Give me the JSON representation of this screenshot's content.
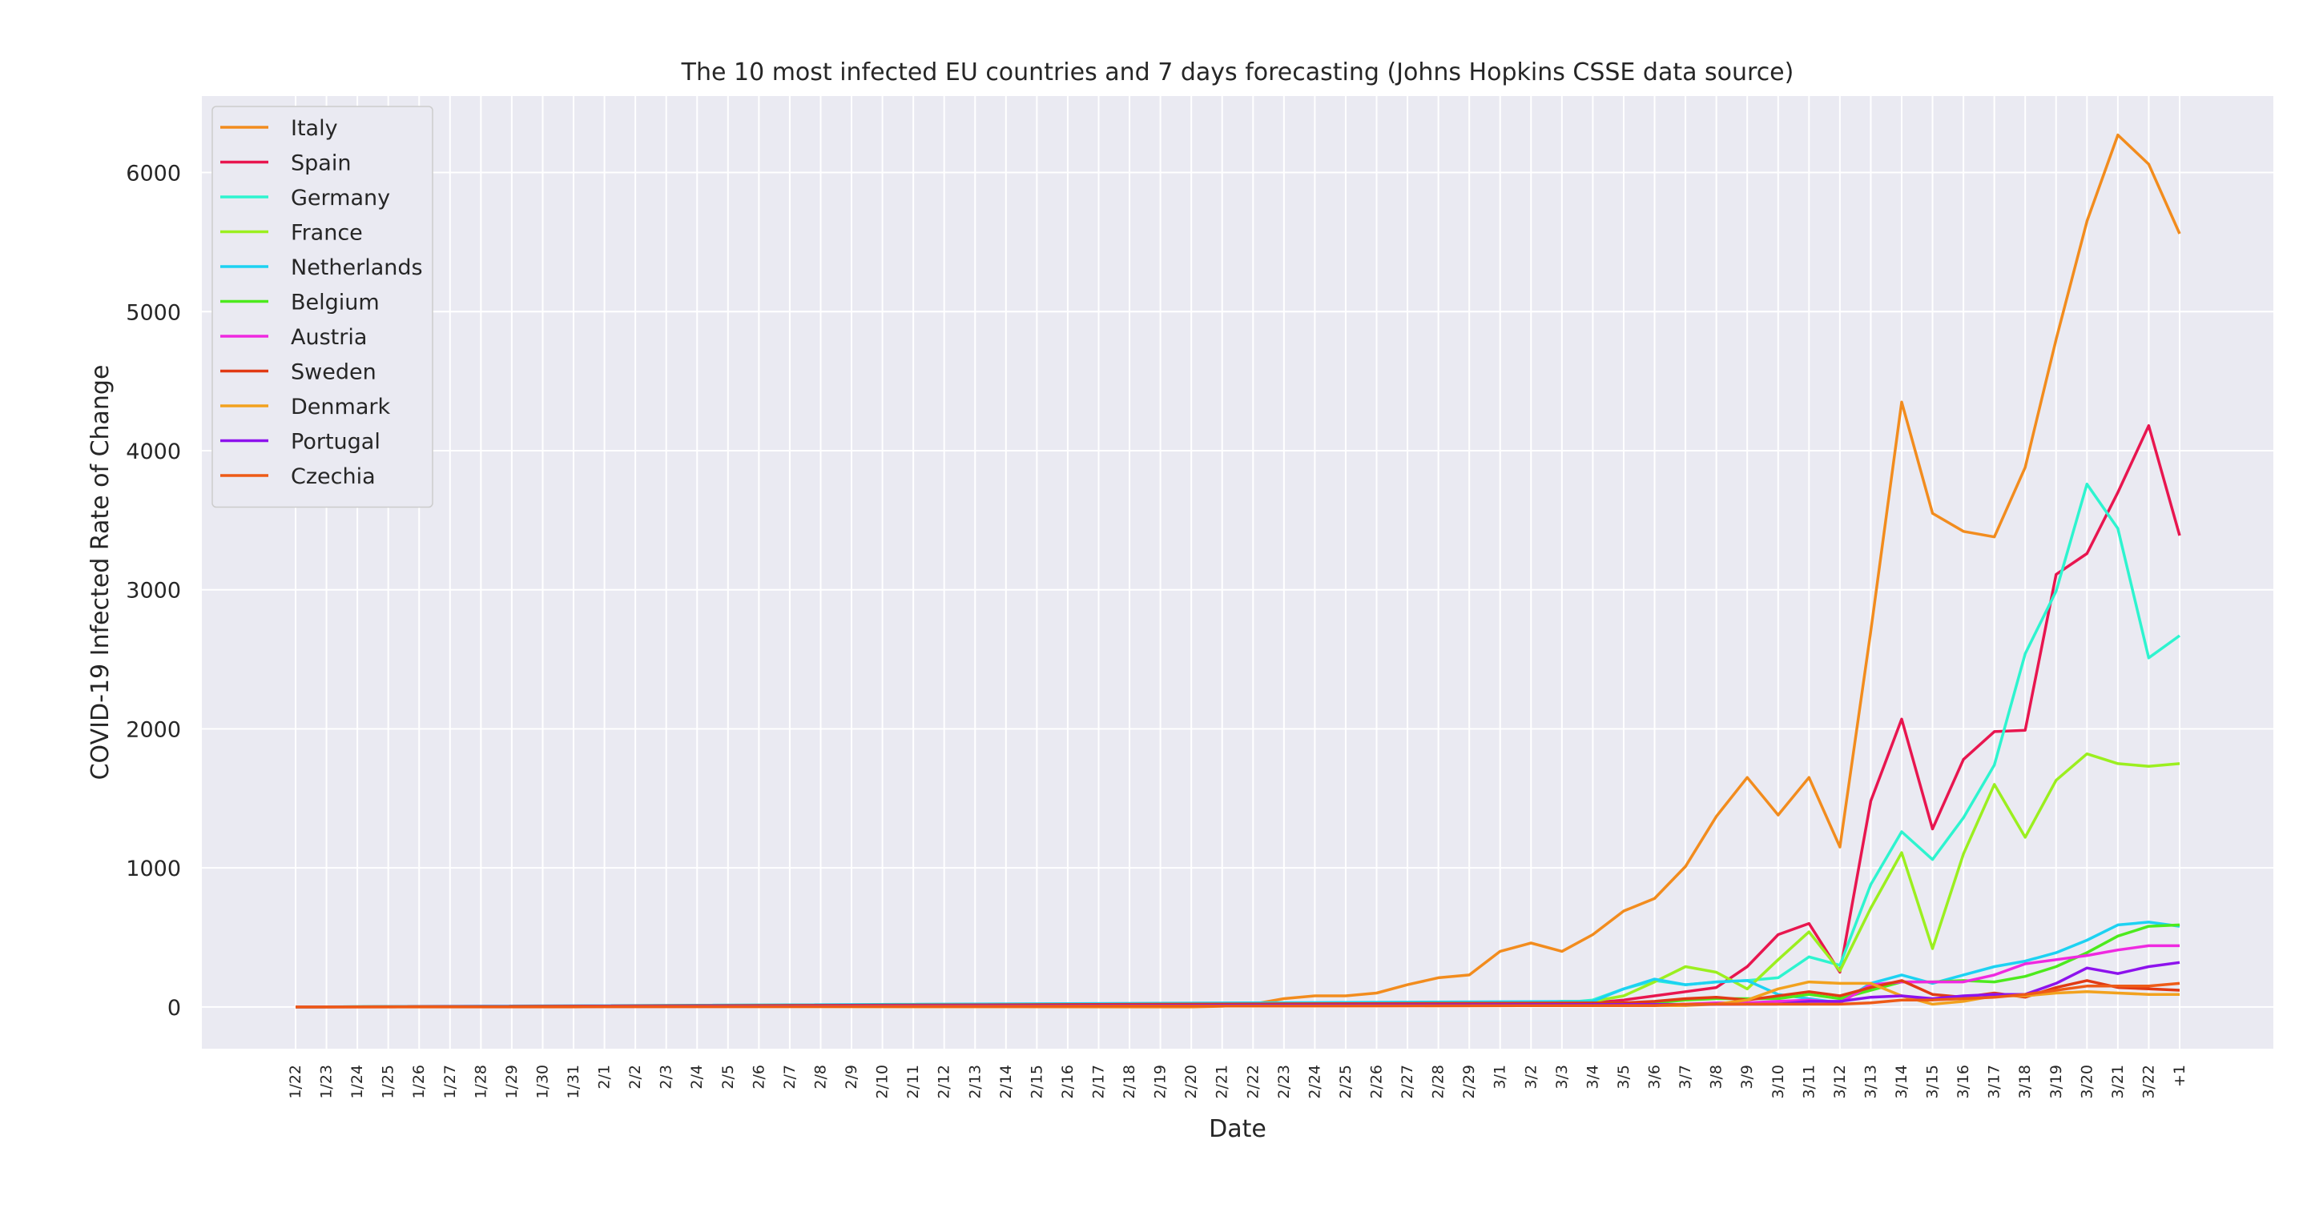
{
  "chart_data": {
    "type": "line",
    "title": "The 10 most infected EU countries and 7 days forecasting (Johns Hopkins CSSE data source)",
    "xlabel": "Date",
    "ylabel": "COVID-19 Infected Rate of Change",
    "ylim": [
      -300,
      6550
    ],
    "yticks": [
      0,
      1000,
      2000,
      3000,
      4000,
      5000,
      6000
    ],
    "grid": true,
    "legend_position": "upper-left",
    "background_color": "#eaeaf2",
    "x": [
      "1/22",
      "1/23",
      "1/24",
      "1/25",
      "1/26",
      "1/27",
      "1/28",
      "1/29",
      "1/30",
      "1/31",
      "2/1",
      "2/2",
      "2/3",
      "2/4",
      "2/5",
      "2/6",
      "2/7",
      "2/8",
      "2/9",
      "2/10",
      "2/11",
      "2/12",
      "2/13",
      "2/14",
      "2/15",
      "2/16",
      "2/17",
      "2/18",
      "2/19",
      "2/20",
      "2/21",
      "2/22",
      "2/23",
      "2/24",
      "2/25",
      "2/26",
      "2/27",
      "2/28",
      "2/29",
      "3/1",
      "3/2",
      "3/3",
      "3/4",
      "3/5",
      "3/6",
      "3/7",
      "3/8",
      "3/9",
      "3/10",
      "3/11",
      "3/12",
      "3/13",
      "3/14",
      "3/15",
      "3/16",
      "3/17",
      "3/18",
      "3/19",
      "3/20",
      "3/21",
      "3/22",
      "+1"
    ],
    "series": [
      {
        "name": "Italy",
        "color": "#f28c1e",
        "points": [
          [
            0,
            0
          ],
          [
            9,
            0
          ],
          [
            10,
            2
          ],
          [
            29,
            0
          ],
          [
            30,
            5
          ],
          [
            31,
            20
          ],
          [
            32,
            60
          ],
          [
            33,
            80
          ],
          [
            34,
            80
          ],
          [
            35,
            100
          ],
          [
            36,
            160
          ],
          [
            37,
            210
          ],
          [
            38,
            230
          ],
          [
            39,
            400
          ],
          [
            40,
            460
          ],
          [
            41,
            400
          ],
          [
            42,
            520
          ],
          [
            43,
            690
          ],
          [
            44,
            780
          ],
          [
            45,
            1010
          ],
          [
            46,
            1370
          ],
          [
            47,
            1650
          ],
          [
            48,
            1380
          ],
          [
            49,
            1650
          ],
          [
            50,
            1150
          ],
          [
            51,
            2700
          ],
          [
            52,
            4350
          ],
          [
            53,
            3550
          ],
          [
            54,
            3420
          ],
          [
            55,
            3380
          ],
          [
            56,
            3880
          ],
          [
            57,
            4800
          ],
          [
            58,
            5650
          ],
          [
            59,
            6270
          ],
          [
            60,
            6060
          ],
          [
            61,
            5560
          ]
        ]
      },
      {
        "name": "Spain",
        "color": "#e8164f",
        "points": [
          [
            0,
            0
          ],
          [
            39,
            10
          ],
          [
            40,
            20
          ],
          [
            41,
            20
          ],
          [
            42,
            30
          ],
          [
            43,
            50
          ],
          [
            44,
            80
          ],
          [
            45,
            110
          ],
          [
            46,
            140
          ],
          [
            47,
            290
          ],
          [
            48,
            520
          ],
          [
            49,
            600
          ],
          [
            50,
            250
          ],
          [
            51,
            1480
          ],
          [
            52,
            2070
          ],
          [
            53,
            1280
          ],
          [
            54,
            1780
          ],
          [
            55,
            1980
          ],
          [
            56,
            1990
          ],
          [
            57,
            3110
          ],
          [
            58,
            3260
          ],
          [
            59,
            3700
          ],
          [
            60,
            4180
          ],
          [
            61,
            3390
          ]
        ]
      },
      {
        "name": "Germany",
        "color": "#2ef4cf",
        "points": [
          [
            0,
            0
          ],
          [
            41,
            30
          ],
          [
            42,
            50
          ],
          [
            43,
            130
          ],
          [
            44,
            190
          ],
          [
            45,
            160
          ],
          [
            46,
            180
          ],
          [
            47,
            190
          ],
          [
            48,
            210
          ],
          [
            49,
            360
          ],
          [
            50,
            300
          ],
          [
            51,
            880
          ],
          [
            52,
            1260
          ],
          [
            53,
            1060
          ],
          [
            54,
            1360
          ],
          [
            55,
            1740
          ],
          [
            56,
            2540
          ],
          [
            57,
            2990
          ],
          [
            58,
            3760
          ],
          [
            59,
            3440
          ],
          [
            60,
            2510
          ],
          [
            61,
            2670
          ]
        ]
      },
      {
        "name": "France",
        "color": "#9bef1f",
        "points": [
          [
            0,
            0
          ],
          [
            38,
            20
          ],
          [
            39,
            30
          ],
          [
            40,
            30
          ],
          [
            41,
            40
          ],
          [
            42,
            40
          ],
          [
            43,
            80
          ],
          [
            44,
            180
          ],
          [
            45,
            290
          ],
          [
            46,
            250
          ],
          [
            47,
            130
          ],
          [
            48,
            340
          ],
          [
            49,
            540
          ],
          [
            50,
            260
          ],
          [
            51,
            710
          ],
          [
            52,
            1110
          ],
          [
            53,
            420
          ],
          [
            54,
            1100
          ],
          [
            55,
            1600
          ],
          [
            56,
            1220
          ],
          [
            57,
            1630
          ],
          [
            58,
            1820
          ],
          [
            59,
            1750
          ],
          [
            60,
            1730
          ],
          [
            61,
            1750
          ]
        ]
      },
      {
        "name": "Netherlands",
        "color": "#1dd2f2",
        "points": [
          [
            0,
            0
          ],
          [
            42,
            40
          ],
          [
            43,
            130
          ],
          [
            44,
            200
          ],
          [
            45,
            160
          ],
          [
            46,
            180
          ],
          [
            47,
            190
          ],
          [
            48,
            90
          ],
          [
            49,
            60
          ],
          [
            50,
            30
          ],
          [
            51,
            170
          ],
          [
            52,
            230
          ],
          [
            53,
            170
          ],
          [
            54,
            230
          ],
          [
            55,
            290
          ],
          [
            56,
            330
          ],
          [
            57,
            390
          ],
          [
            58,
            480
          ],
          [
            59,
            590
          ],
          [
            60,
            610
          ],
          [
            61,
            580
          ]
        ]
      },
      {
        "name": "Belgium",
        "color": "#4cea1d",
        "points": [
          [
            0,
            0
          ],
          [
            44,
            30
          ],
          [
            45,
            50
          ],
          [
            46,
            60
          ],
          [
            47,
            60
          ],
          [
            48,
            60
          ],
          [
            49,
            90
          ],
          [
            50,
            60
          ],
          [
            51,
            120
          ],
          [
            52,
            180
          ],
          [
            53,
            180
          ],
          [
            54,
            190
          ],
          [
            55,
            180
          ],
          [
            56,
            220
          ],
          [
            57,
            290
          ],
          [
            58,
            390
          ],
          [
            59,
            510
          ],
          [
            60,
            580
          ],
          [
            61,
            590
          ]
        ]
      },
      {
        "name": "Austria",
        "color": "#ef29e0",
        "points": [
          [
            0,
            0
          ],
          [
            44,
            10
          ],
          [
            45,
            20
          ],
          [
            46,
            30
          ],
          [
            47,
            30
          ],
          [
            48,
            40
          ],
          [
            49,
            50
          ],
          [
            50,
            30
          ],
          [
            51,
            160
          ],
          [
            52,
            180
          ],
          [
            53,
            180
          ],
          [
            54,
            180
          ],
          [
            55,
            230
          ],
          [
            56,
            310
          ],
          [
            57,
            340
          ],
          [
            58,
            370
          ],
          [
            59,
            410
          ],
          [
            60,
            440
          ],
          [
            61,
            440
          ]
        ]
      },
      {
        "name": "Sweden",
        "color": "#e13a14",
        "points": [
          [
            0,
            0
          ],
          [
            43,
            30
          ],
          [
            44,
            40
          ],
          [
            45,
            60
          ],
          [
            46,
            70
          ],
          [
            47,
            50
          ],
          [
            48,
            80
          ],
          [
            49,
            110
          ],
          [
            50,
            80
          ],
          [
            51,
            140
          ],
          [
            52,
            190
          ],
          [
            53,
            90
          ],
          [
            54,
            70
          ],
          [
            55,
            100
          ],
          [
            56,
            70
          ],
          [
            57,
            140
          ],
          [
            58,
            190
          ],
          [
            59,
            140
          ],
          [
            60,
            130
          ],
          [
            61,
            120
          ]
        ]
      },
      {
        "name": "Denmark",
        "color": "#f2a11e",
        "points": [
          [
            0,
            0
          ],
          [
            45,
            10
          ],
          [
            46,
            20
          ],
          [
            47,
            50
          ],
          [
            48,
            130
          ],
          [
            49,
            180
          ],
          [
            50,
            170
          ],
          [
            51,
            170
          ],
          [
            52,
            80
          ],
          [
            53,
            20
          ],
          [
            54,
            40
          ],
          [
            55,
            80
          ],
          [
            56,
            80
          ],
          [
            57,
            100
          ],
          [
            58,
            110
          ],
          [
            59,
            100
          ],
          [
            60,
            90
          ],
          [
            61,
            90
          ]
        ]
      },
      {
        "name": "Portugal",
        "color": "#8d12ed",
        "points": [
          [
            0,
            0
          ],
          [
            48,
            20
          ],
          [
            49,
            40
          ],
          [
            50,
            40
          ],
          [
            51,
            70
          ],
          [
            52,
            80
          ],
          [
            53,
            60
          ],
          [
            54,
            80
          ],
          [
            55,
            90
          ],
          [
            56,
            90
          ],
          [
            57,
            170
          ],
          [
            58,
            280
          ],
          [
            59,
            240
          ],
          [
            60,
            290
          ],
          [
            61,
            320
          ]
        ]
      },
      {
        "name": "Czechia",
        "color": "#ee5b17",
        "points": [
          [
            0,
            0
          ],
          [
            44,
            10
          ],
          [
            45,
            20
          ],
          [
            46,
            20
          ],
          [
            47,
            20
          ],
          [
            48,
            20
          ],
          [
            49,
            20
          ],
          [
            50,
            20
          ],
          [
            51,
            30
          ],
          [
            52,
            50
          ],
          [
            53,
            50
          ],
          [
            54,
            60
          ],
          [
            55,
            70
          ],
          [
            56,
            90
          ],
          [
            57,
            120
          ],
          [
            58,
            150
          ],
          [
            59,
            150
          ],
          [
            60,
            150
          ],
          [
            61,
            170
          ]
        ]
      }
    ]
  }
}
